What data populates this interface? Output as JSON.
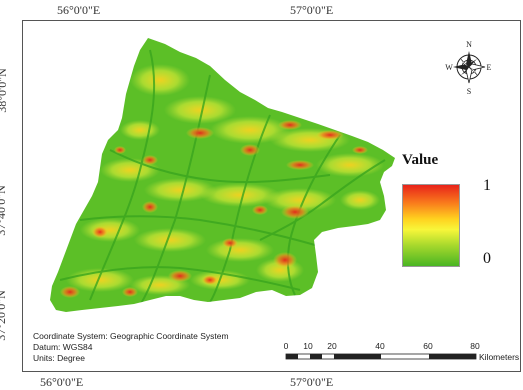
{
  "graticule": {
    "top": [
      "56°0'0\"E",
      "57°0'0\"E"
    ],
    "bottom": [
      "56°0'0\"E",
      "57°0'0\"E"
    ],
    "left": [
      "38°0'0\"N",
      "37°40'0\"N",
      "37°20'0\"N"
    ]
  },
  "north_arrow": {
    "n": "N",
    "s": "S",
    "e": "E",
    "w": "W"
  },
  "legend": {
    "title": "Value",
    "max_label": "1",
    "min_label": "0",
    "colors": [
      "#e8231a",
      "#ffd21f",
      "#4ab523"
    ]
  },
  "info": {
    "coordinate_system": "Coordinate System: Geographic Coordinate System",
    "datum": "Datum: WGS84",
    "units": "Units: Degree"
  },
  "scale_bar": {
    "ticks": [
      "0",
      "10",
      "20",
      "40",
      "60",
      "80"
    ],
    "unit": "Kilometers"
  }
}
